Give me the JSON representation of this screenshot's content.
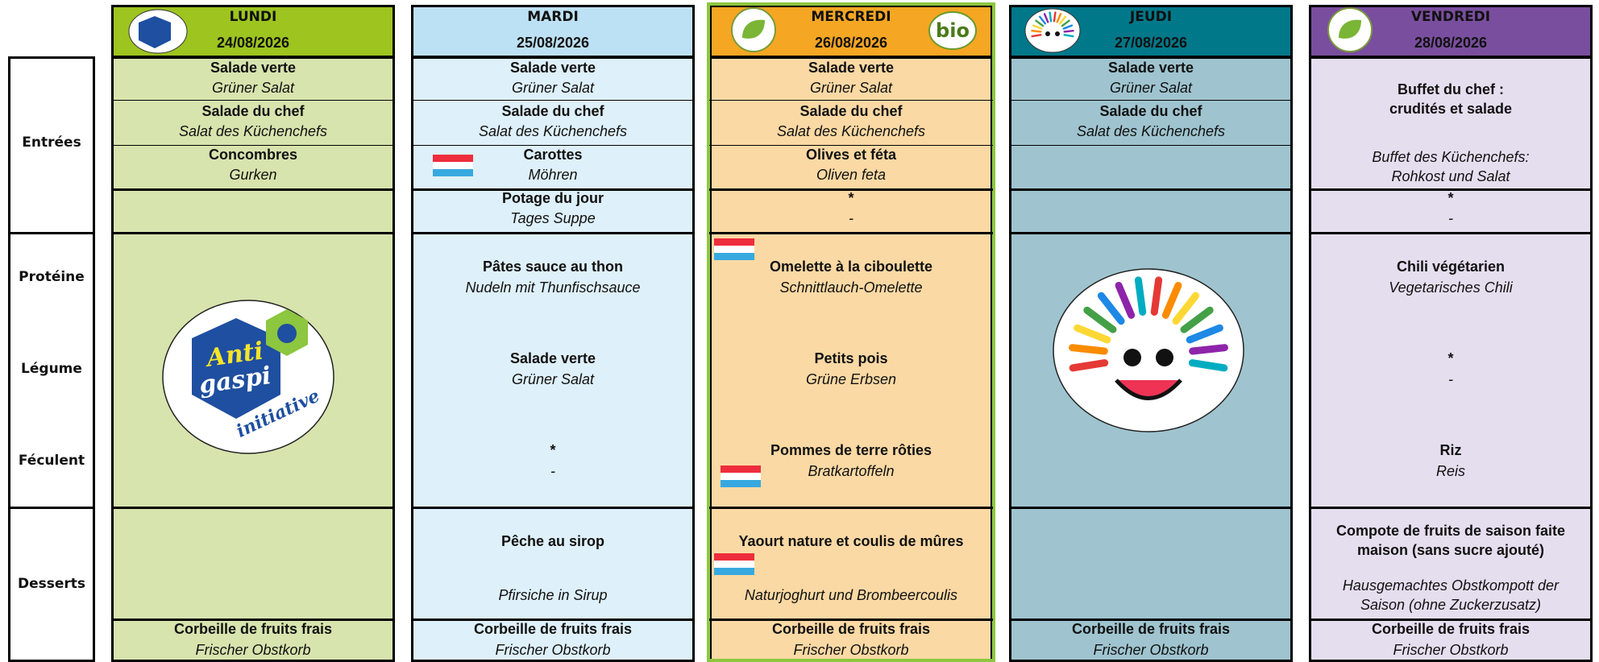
{
  "row_labels": {
    "entrees": "Entrées",
    "proteine": "Protéine",
    "legume": "Légume",
    "feculent": "Féculent",
    "desserts": "Desserts"
  },
  "logos": {
    "antigaspi": [
      "Anti",
      "gaspi",
      "initiative"
    ],
    "bio": "bio"
  },
  "days": [
    {
      "name": "LUNDI",
      "date": "24/08/2026",
      "entrees": [
        {
          "fr": "Salade verte",
          "de": "Grüner Salat"
        },
        {
          "fr": "Salade du chef",
          "de": "Salat des Küchenchefs"
        },
        {
          "fr": "Concombres",
          "de": "Gurken"
        }
      ],
      "fruit": {
        "fr": "Corbeille de fruits frais",
        "de": "Frischer Obstkorb"
      }
    },
    {
      "name": "MARDI",
      "date": "25/08/2026",
      "entrees": [
        {
          "fr": "Salade verte",
          "de": "Grüner Salat"
        },
        {
          "fr": "Salade du chef",
          "de": "Salat des Küchenchefs"
        },
        {
          "fr": "Carottes",
          "de": "Möhren"
        },
        {
          "fr": "Potage du jour",
          "de": "Tages Suppe"
        }
      ],
      "proteine": {
        "fr": "Pâtes sauce au thon",
        "de": "Nudeln mit Thunfischsauce"
      },
      "legume": {
        "fr": "Salade verte",
        "de": "Grüner Salat"
      },
      "feculent": {
        "fr": "*",
        "de": "-"
      },
      "dessert": {
        "fr": "Pêche au sirop",
        "de": "Pfirsiche in Sirup"
      },
      "fruit": {
        "fr": "Corbeille de fruits frais",
        "de": "Frischer Obstkorb"
      }
    },
    {
      "name": "MERCREDI",
      "date": "26/08/2026",
      "entrees": [
        {
          "fr": "Salade verte",
          "de": "Grüner Salat"
        },
        {
          "fr": "Salade du chef",
          "de": "Salat des Küchenchefs"
        },
        {
          "fr": "Olives et féta",
          "de": "Oliven feta"
        },
        {
          "fr": "*",
          "de": "-"
        }
      ],
      "proteine": {
        "fr": "Omelette à la ciboulette",
        "de": "Schnittlauch-Omelette"
      },
      "legume": {
        "fr": "Petits pois",
        "de": "Grüne Erbsen"
      },
      "feculent": {
        "fr": "Pommes de terre rôties",
        "de": "Bratkartoffeln"
      },
      "dessert": {
        "fr": "Yaourt nature et coulis de mûres",
        "de": "Naturjoghurt und Brombeercoulis"
      },
      "fruit": {
        "fr": "Corbeille de fruits frais",
        "de": "Frischer Obstkorb"
      }
    },
    {
      "name": "JEUDI",
      "date": "27/08/2026",
      "entrees": [
        {
          "fr": "Salade verte",
          "de": "Grüner Salat"
        },
        {
          "fr": "Salade du chef",
          "de": "Salat des Küchenchefs"
        }
      ],
      "fruit": {
        "fr": "Corbeille de fruits frais",
        "de": "Frischer Obstkorb"
      }
    },
    {
      "name": "VENDREDI",
      "date": "28/08/2026",
      "entrees": [
        {
          "fr": "Buffet du chef : crudités et salade",
          "de": "Buffet des Küchenchefs: Rohkost und Salat"
        },
        {
          "fr": "*",
          "de": "-"
        }
      ],
      "proteine": {
        "fr": "Chili végétarien",
        "de": "Vegetarisches Chili"
      },
      "legume": {
        "fr": "*",
        "de": "-"
      },
      "feculent": {
        "fr": "Riz",
        "de": "Reis"
      },
      "dessert": {
        "fr": "Compote de fruits de saison faite maison (sans sucre ajouté)",
        "de": "Hausgemachtes Obstkompott der Saison (ohne Zuckerzusatz)"
      },
      "fruit": {
        "fr": "Corbeille de fruits frais",
        "de": "Frischer Obstkorb"
      }
    }
  ]
}
